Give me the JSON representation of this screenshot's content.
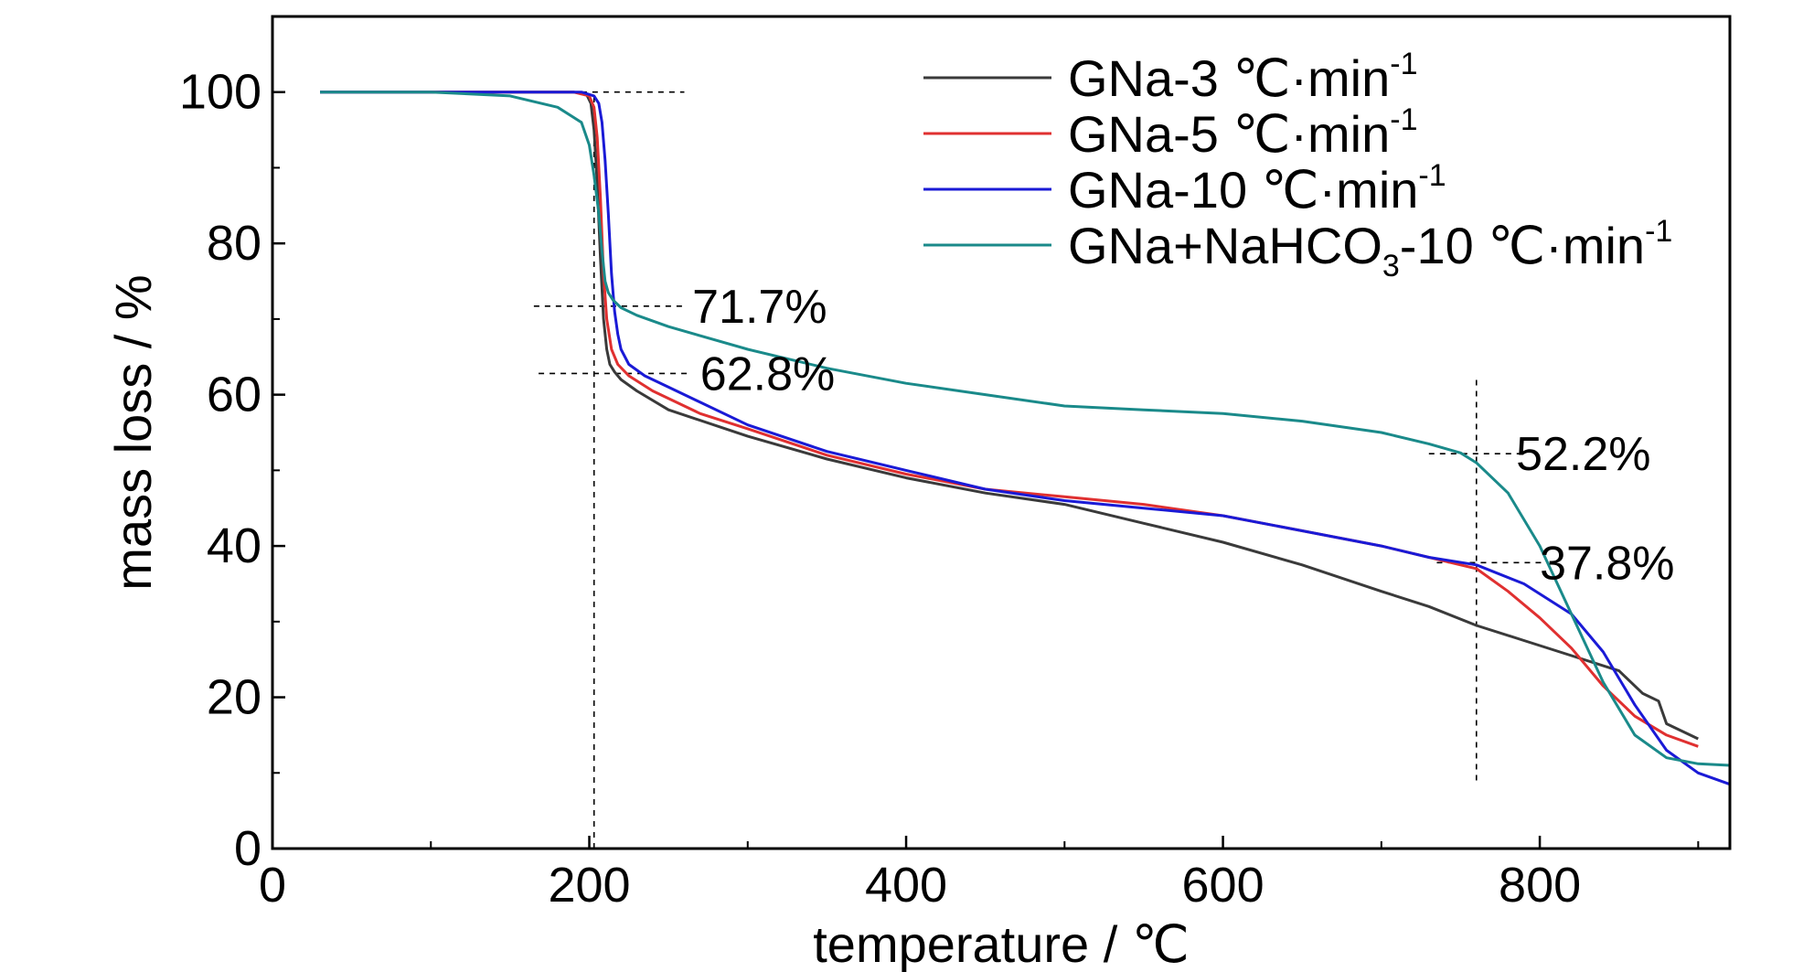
{
  "chart_data": {
    "type": "line",
    "xlabel": "temperature / ℃",
    "ylabel": "mass loss / %",
    "xlim": [
      0,
      920
    ],
    "ylim": [
      0,
      110
    ],
    "xticks": [
      0,
      200,
      400,
      600,
      800
    ],
    "yticks": [
      0,
      20,
      40,
      60,
      80,
      100
    ],
    "grid": false,
    "legend_position": "top-right",
    "series": [
      {
        "name": "GNa-3 ℃·min",
        "name_sup": "-1",
        "color": "#3a3a3a",
        "x": [
          30,
          100,
          150,
          190,
          198,
          201,
          203,
          205,
          207,
          209,
          211,
          213,
          216,
          220,
          230,
          250,
          300,
          350,
          400,
          450,
          500,
          550,
          600,
          650,
          700,
          730,
          760,
          790,
          820,
          850,
          865,
          875,
          880,
          900
        ],
        "y": [
          100,
          100,
          100,
          100,
          99.8,
          98.5,
          95,
          88,
          78,
          70,
          66,
          64,
          63,
          62,
          60.5,
          58,
          54.5,
          51.5,
          49,
          47,
          45.5,
          43,
          40.5,
          37.5,
          34,
          32,
          29.5,
          27.5,
          25.5,
          23.5,
          20.5,
          19.5,
          16.5,
          14.5
        ]
      },
      {
        "name": "GNa-5 ℃·min",
        "name_sup": "-1",
        "color": "#e03030",
        "x": [
          30,
          100,
          150,
          190,
          200,
          203,
          205,
          207,
          209,
          211,
          214,
          218,
          225,
          240,
          270,
          300,
          350,
          400,
          450,
          500,
          550,
          600,
          650,
          700,
          730,
          760,
          780,
          800,
          820,
          840,
          860,
          880,
          900
        ],
        "y": [
          100,
          100,
          100,
          100,
          99.5,
          98,
          94,
          86,
          76,
          70,
          66,
          64,
          62.5,
          60.5,
          57.5,
          55.5,
          52,
          49.5,
          47.5,
          46.5,
          45.5,
          44,
          42,
          40,
          38.5,
          37,
          34,
          30.5,
          26.5,
          21.5,
          17.5,
          15,
          13.5
        ]
      },
      {
        "name": "GNa-10 ℃·min",
        "name_sup": "-1",
        "color": "#1a1ad6",
        "x": [
          30,
          100,
          150,
          195,
          203,
          206,
          208,
          210,
          212,
          214,
          216,
          218,
          220,
          225,
          235,
          250,
          300,
          350,
          400,
          450,
          500,
          550,
          600,
          650,
          700,
          730,
          760,
          790,
          820,
          840,
          860,
          880,
          900,
          920
        ],
        "y": [
          100,
          100,
          100,
          100,
          99.5,
          98.5,
          96,
          91,
          84,
          76,
          71,
          68,
          66,
          64,
          62.5,
          61,
          56,
          52.5,
          50,
          47.5,
          46,
          45,
          44,
          42,
          40,
          38.5,
          37.5,
          35,
          31,
          26,
          19,
          13,
          10,
          8.5
        ]
      },
      {
        "name": "GNa+NaHCO",
        "name_sub": "3",
        "name_rest": "-10 ℃·min",
        "name_sup": "-1",
        "color": "#1a8a8a",
        "x": [
          30,
          100,
          150,
          180,
          195,
          200,
          203,
          206,
          208,
          210,
          212,
          215,
          220,
          230,
          250,
          300,
          350,
          400,
          450,
          500,
          550,
          600,
          650,
          700,
          730,
          750,
          760,
          780,
          800,
          820,
          840,
          860,
          880,
          900,
          920
        ],
        "y": [
          100,
          100,
          99.5,
          98,
          96,
          93,
          89,
          84,
          79,
          75,
          73.5,
          72.5,
          71.5,
          70.5,
          69,
          66,
          63.5,
          61.5,
          60,
          58.5,
          58,
          57.5,
          56.5,
          55,
          53.5,
          52.3,
          51,
          47,
          40,
          31,
          22,
          15,
          12,
          11.2,
          11
        ]
      }
    ],
    "reference_lines": [
      {
        "orientation": "vertical",
        "x": 203,
        "y_from": 0,
        "y_to": 100
      },
      {
        "orientation": "vertical",
        "x": 760,
        "y_from": 9,
        "y_to": 62
      },
      {
        "orientation": "horizontal",
        "y": 100,
        "x_from": 195,
        "x_to": 260
      },
      {
        "orientation": "horizontal",
        "y": 71.7,
        "x_from": 165,
        "x_to": 260
      },
      {
        "orientation": "horizontal",
        "y": 62.8,
        "x_from": 168,
        "x_to": 262
      },
      {
        "orientation": "horizontal",
        "y": 52.2,
        "x_from": 730,
        "x_to": 790
      },
      {
        "orientation": "horizontal",
        "y": 37.8,
        "x_from": 735,
        "x_to": 805
      }
    ],
    "annotations": [
      {
        "text": "71.7%",
        "x": 265,
        "y": 71.7
      },
      {
        "text": "62.8%",
        "x": 270,
        "y": 62.8
      },
      {
        "text": "52.2%",
        "x": 785,
        "y": 52.2
      },
      {
        "text": "37.8%",
        "x": 800,
        "y": 37.8
      }
    ]
  }
}
